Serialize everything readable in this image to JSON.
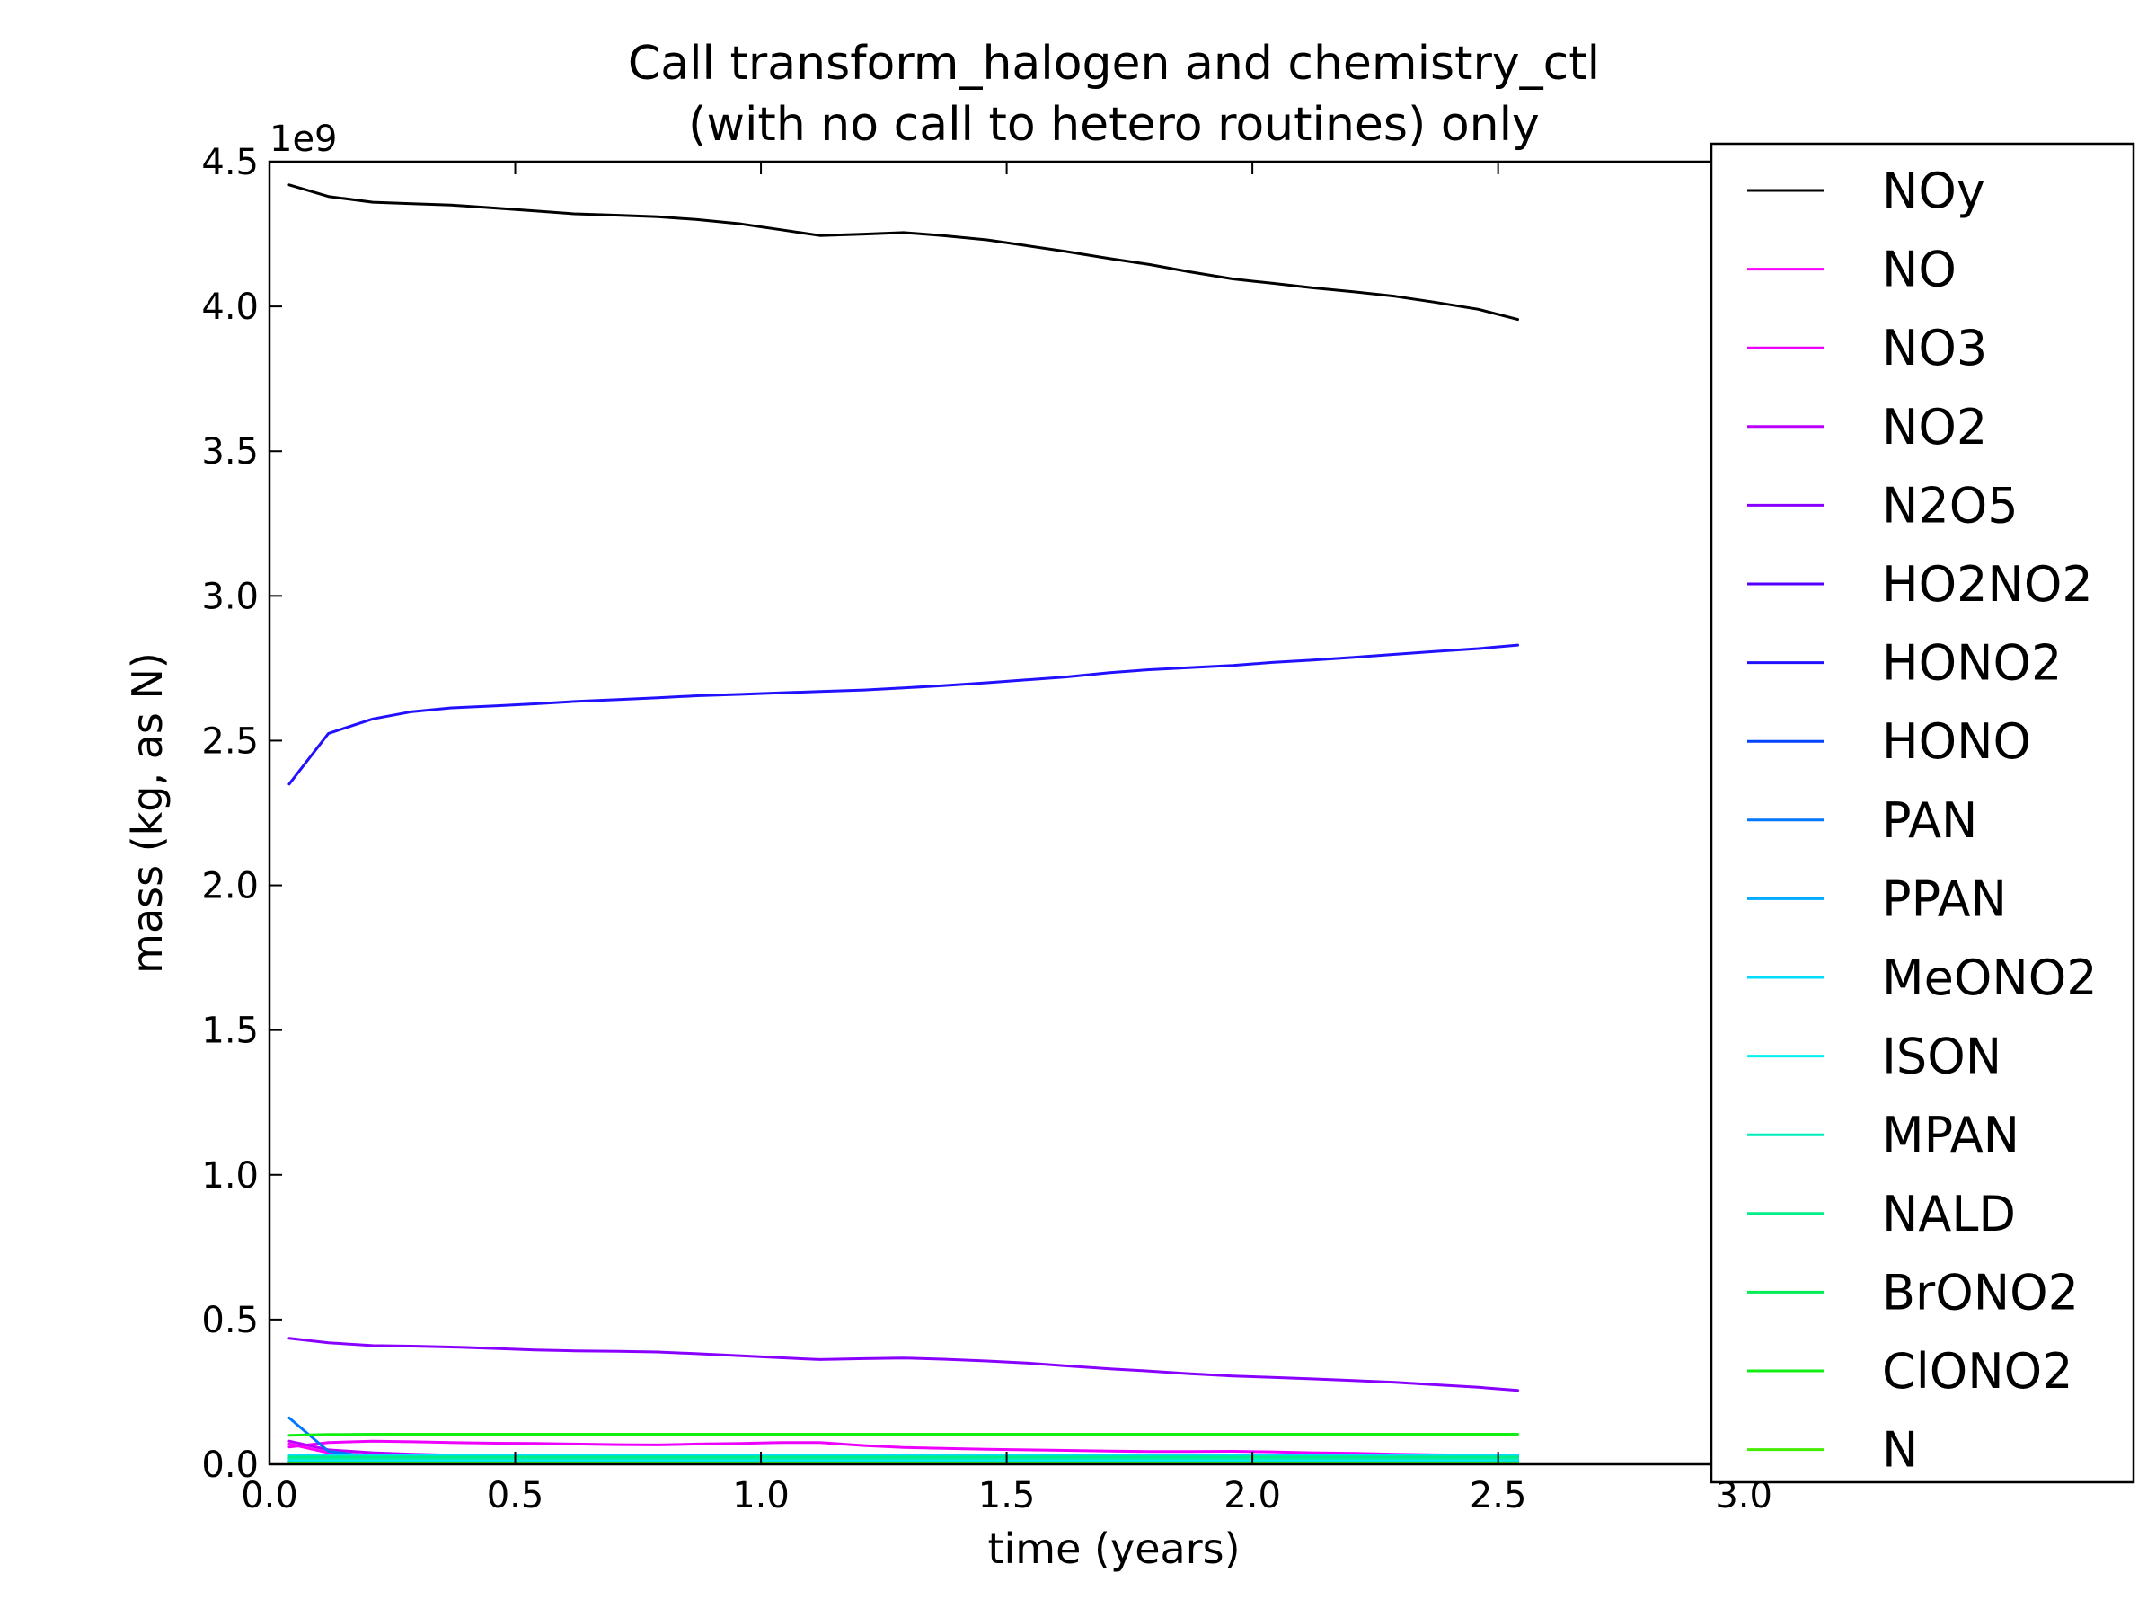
{
  "chart_data": {
    "type": "line",
    "title_lines": [
      "Call transform_halogen and chemistry_ctl",
      "(with no call to hetero routines) only"
    ],
    "xlabel": "time (years)",
    "ylabel": "mass (kg, as N)",
    "y_offset_label": "1e9",
    "y_scale": 1000000000.0,
    "xlim": [
      0.0,
      3.4
    ],
    "ylim": [
      0.0,
      4.5
    ],
    "xticks": [
      0.0,
      0.5,
      1.0,
      1.5,
      2.0,
      2.5,
      3.0
    ],
    "yticks": [
      0.0,
      0.5,
      1.0,
      1.5,
      2.0,
      2.5,
      3.0,
      3.5,
      4.0,
      4.5
    ],
    "grid": false,
    "legend_position": "right",
    "x": [
      0.04,
      0.12,
      0.21,
      0.29,
      0.37,
      0.46,
      0.54,
      0.62,
      0.71,
      0.79,
      0.87,
      0.96,
      1.04,
      1.12,
      1.21,
      1.29,
      1.37,
      1.46,
      1.54,
      1.62,
      1.71,
      1.79,
      1.87,
      1.96,
      2.04,
      2.12,
      2.21,
      2.29,
      2.37,
      2.46,
      2.54
    ],
    "series": [
      {
        "name": "NOy",
        "color": "#000000",
        "values": [
          4.42,
          4.38,
          4.36,
          4.355,
          4.35,
          4.34,
          4.33,
          4.32,
          4.315,
          4.31,
          4.3,
          4.285,
          4.265,
          4.245,
          4.25,
          4.255,
          4.245,
          4.23,
          4.21,
          4.19,
          4.165,
          4.145,
          4.12,
          4.095,
          4.08,
          4.065,
          4.05,
          4.035,
          4.015,
          3.99,
          3.955
        ]
      },
      {
        "name": "NO",
        "color": "#ff00ff",
        "values": [
          0.07,
          0.04,
          0.03,
          0.028,
          0.027,
          0.027,
          0.026,
          0.026,
          0.026,
          0.026,
          0.026,
          0.026,
          0.026,
          0.026,
          0.026,
          0.026,
          0.026,
          0.026,
          0.026,
          0.026,
          0.026,
          0.026,
          0.026,
          0.026,
          0.026,
          0.026,
          0.026,
          0.026,
          0.026,
          0.026,
          0.026
        ]
      },
      {
        "name": "NO3",
        "color": "#ee00ff",
        "values": [
          0.06,
          0.075,
          0.08,
          0.078,
          0.075,
          0.073,
          0.072,
          0.07,
          0.068,
          0.067,
          0.07,
          0.072,
          0.075,
          0.075,
          0.065,
          0.058,
          0.055,
          0.052,
          0.05,
          0.048,
          0.046,
          0.044,
          0.044,
          0.045,
          0.043,
          0.04,
          0.038,
          0.035,
          0.033,
          0.032,
          0.03
        ]
      },
      {
        "name": "NO2",
        "color": "#bb00ff",
        "values": [
          0.08,
          0.05,
          0.04,
          0.035,
          0.032,
          0.03,
          0.03,
          0.029,
          0.029,
          0.029,
          0.029,
          0.029,
          0.028,
          0.028,
          0.028,
          0.028,
          0.028,
          0.028,
          0.028,
          0.028,
          0.028,
          0.028,
          0.028,
          0.028,
          0.028,
          0.028,
          0.028,
          0.028,
          0.028,
          0.028,
          0.028
        ]
      },
      {
        "name": "N2O5",
        "color": "#8800ff",
        "values": [
          0.435,
          0.42,
          0.41,
          0.408,
          0.405,
          0.4,
          0.395,
          0.392,
          0.39,
          0.388,
          0.382,
          0.375,
          0.368,
          0.362,
          0.365,
          0.367,
          0.363,
          0.357,
          0.35,
          0.34,
          0.33,
          0.322,
          0.313,
          0.305,
          0.3,
          0.295,
          0.289,
          0.283,
          0.275,
          0.266,
          0.255
        ]
      },
      {
        "name": "HO2NO2",
        "color": "#5500ff",
        "values": [
          0.02,
          0.02,
          0.02,
          0.02,
          0.02,
          0.02,
          0.02,
          0.02,
          0.02,
          0.02,
          0.02,
          0.02,
          0.02,
          0.02,
          0.02,
          0.02,
          0.02,
          0.02,
          0.02,
          0.02,
          0.02,
          0.02,
          0.02,
          0.02,
          0.02,
          0.02,
          0.02,
          0.02,
          0.02,
          0.02,
          0.02
        ]
      },
      {
        "name": "HONO2",
        "color": "#2211ff",
        "values": [
          2.35,
          2.525,
          2.575,
          2.6,
          2.613,
          2.62,
          2.627,
          2.635,
          2.642,
          2.648,
          2.655,
          2.66,
          2.665,
          2.67,
          2.675,
          2.682,
          2.69,
          2.7,
          2.71,
          2.72,
          2.735,
          2.745,
          2.752,
          2.76,
          2.77,
          2.778,
          2.788,
          2.798,
          2.808,
          2.818,
          2.83
        ]
      },
      {
        "name": "HONO",
        "color": "#0044ff",
        "values": [
          0.01,
          0.01,
          0.01,
          0.01,
          0.01,
          0.01,
          0.01,
          0.01,
          0.01,
          0.01,
          0.01,
          0.01,
          0.01,
          0.01,
          0.01,
          0.01,
          0.01,
          0.01,
          0.01,
          0.01,
          0.01,
          0.01,
          0.01,
          0.01,
          0.01,
          0.01,
          0.01,
          0.01,
          0.01,
          0.01,
          0.01
        ]
      },
      {
        "name": "PAN",
        "color": "#0077ff",
        "values": [
          0.16,
          0.045,
          0.025,
          0.022,
          0.021,
          0.02,
          0.02,
          0.02,
          0.02,
          0.02,
          0.02,
          0.02,
          0.02,
          0.02,
          0.02,
          0.02,
          0.02,
          0.02,
          0.02,
          0.02,
          0.02,
          0.02,
          0.02,
          0.02,
          0.02,
          0.02,
          0.02,
          0.02,
          0.02,
          0.02,
          0.02
        ]
      },
      {
        "name": "PPAN",
        "color": "#00aaff",
        "values": [
          0.015,
          0.01,
          0.008,
          0.007,
          0.007,
          0.007,
          0.007,
          0.007,
          0.007,
          0.007,
          0.007,
          0.007,
          0.007,
          0.007,
          0.007,
          0.007,
          0.007,
          0.007,
          0.007,
          0.007,
          0.007,
          0.007,
          0.007,
          0.007,
          0.007,
          0.007,
          0.007,
          0.007,
          0.007,
          0.007,
          0.007
        ]
      },
      {
        "name": "MeONO2",
        "color": "#00ddff",
        "values": [
          0.03,
          0.03,
          0.03,
          0.03,
          0.03,
          0.03,
          0.03,
          0.03,
          0.03,
          0.03,
          0.03,
          0.03,
          0.03,
          0.03,
          0.03,
          0.03,
          0.03,
          0.03,
          0.03,
          0.03,
          0.03,
          0.03,
          0.03,
          0.03,
          0.03,
          0.03,
          0.03,
          0.03,
          0.03,
          0.03,
          0.03
        ]
      },
      {
        "name": "ISON",
        "color": "#00f0ee",
        "values": [
          0.015,
          0.015,
          0.015,
          0.015,
          0.015,
          0.015,
          0.015,
          0.015,
          0.015,
          0.015,
          0.015,
          0.015,
          0.015,
          0.015,
          0.015,
          0.015,
          0.015,
          0.015,
          0.015,
          0.015,
          0.015,
          0.015,
          0.015,
          0.015,
          0.015,
          0.015,
          0.015,
          0.015,
          0.015,
          0.015,
          0.015
        ]
      },
      {
        "name": "MPAN",
        "color": "#00eebb",
        "values": [
          0.02,
          0.02,
          0.02,
          0.02,
          0.02,
          0.02,
          0.02,
          0.02,
          0.02,
          0.02,
          0.02,
          0.02,
          0.02,
          0.02,
          0.02,
          0.02,
          0.02,
          0.02,
          0.02,
          0.02,
          0.02,
          0.02,
          0.02,
          0.02,
          0.02,
          0.02,
          0.02,
          0.02,
          0.02,
          0.02,
          0.02
        ]
      },
      {
        "name": "NALD",
        "color": "#00ee88",
        "values": [
          0.025,
          0.025,
          0.025,
          0.025,
          0.025,
          0.025,
          0.025,
          0.025,
          0.025,
          0.025,
          0.025,
          0.025,
          0.025,
          0.025,
          0.025,
          0.025,
          0.025,
          0.025,
          0.025,
          0.025,
          0.025,
          0.025,
          0.025,
          0.025,
          0.025,
          0.025,
          0.025,
          0.025,
          0.025,
          0.025,
          0.025
        ]
      },
      {
        "name": "BrONO2",
        "color": "#00ee55",
        "values": [
          0.005,
          0.005,
          0.005,
          0.005,
          0.005,
          0.005,
          0.005,
          0.005,
          0.005,
          0.005,
          0.005,
          0.005,
          0.005,
          0.005,
          0.005,
          0.005,
          0.005,
          0.005,
          0.005,
          0.005,
          0.005,
          0.005,
          0.005,
          0.005,
          0.005,
          0.005,
          0.005,
          0.005,
          0.005,
          0.005,
          0.005
        ]
      },
      {
        "name": "ClONO2",
        "color": "#11ee11",
        "values": [
          0.1,
          0.103,
          0.104,
          0.104,
          0.104,
          0.104,
          0.104,
          0.104,
          0.104,
          0.104,
          0.104,
          0.104,
          0.104,
          0.104,
          0.104,
          0.104,
          0.104,
          0.104,
          0.104,
          0.104,
          0.104,
          0.104,
          0.104,
          0.104,
          0.104,
          0.104,
          0.104,
          0.104,
          0.104,
          0.104,
          0.104
        ]
      },
      {
        "name": "N",
        "color": "#44ee00",
        "values": [
          0.002,
          0.002,
          0.002,
          0.002,
          0.002,
          0.002,
          0.002,
          0.002,
          0.002,
          0.002,
          0.002,
          0.002,
          0.002,
          0.002,
          0.002,
          0.002,
          0.002,
          0.002,
          0.002,
          0.002,
          0.002,
          0.002,
          0.002,
          0.002,
          0.002,
          0.002,
          0.002,
          0.002,
          0.002,
          0.002,
          0.002
        ]
      }
    ]
  }
}
